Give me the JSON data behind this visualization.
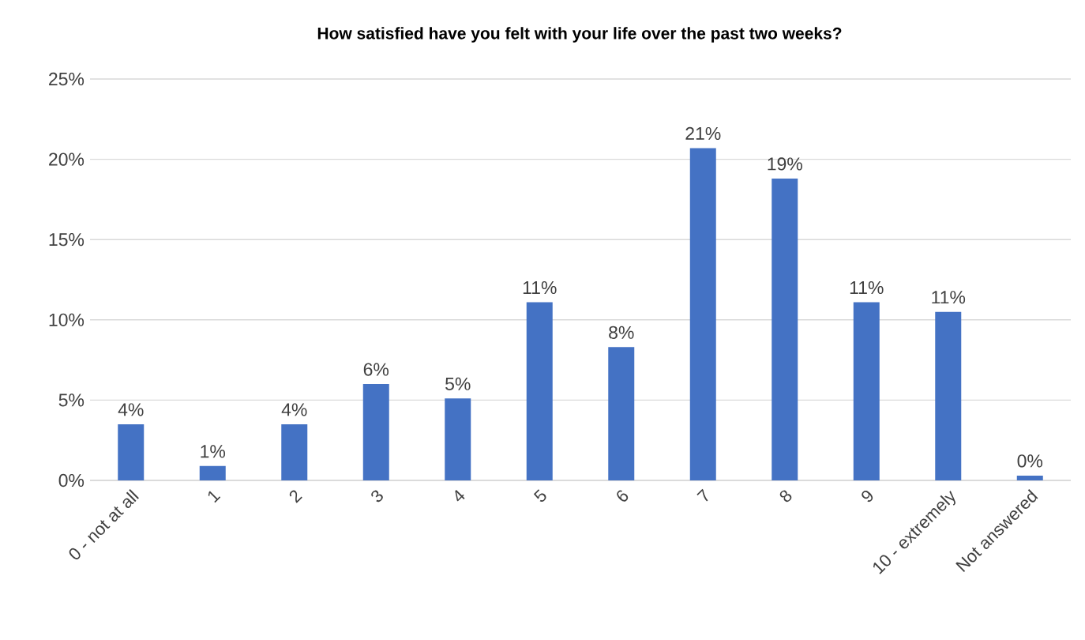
{
  "chart_data": {
    "type": "bar",
    "title": "How satisfied have you felt with your life over the past two weeks?",
    "categories": [
      "0 - not at all",
      "1",
      "2",
      "3",
      "4",
      "5",
      "6",
      "7",
      "8",
      "9",
      "10 - extremely",
      "Not answered"
    ],
    "values": [
      3.5,
      0.9,
      3.5,
      6.0,
      5.1,
      11.1,
      8.3,
      20.7,
      18.8,
      11.1,
      10.5,
      0.3
    ],
    "value_labels": [
      "4%",
      "1%",
      "4%",
      "6%",
      "5%",
      "11%",
      "8%",
      "21%",
      "19%",
      "11%",
      "11%",
      "0%"
    ],
    "color": "#4472c4",
    "ylim": [
      0,
      25
    ],
    "yticks": [
      {
        "value": 0,
        "label": "0%"
      },
      {
        "value": 5,
        "label": "5%"
      },
      {
        "value": 10,
        "label": "10%"
      },
      {
        "value": 15,
        "label": "15%"
      },
      {
        "value": 20,
        "label": "20%"
      },
      {
        "value": 25,
        "label": "25%"
      }
    ],
    "grid": "y"
  }
}
